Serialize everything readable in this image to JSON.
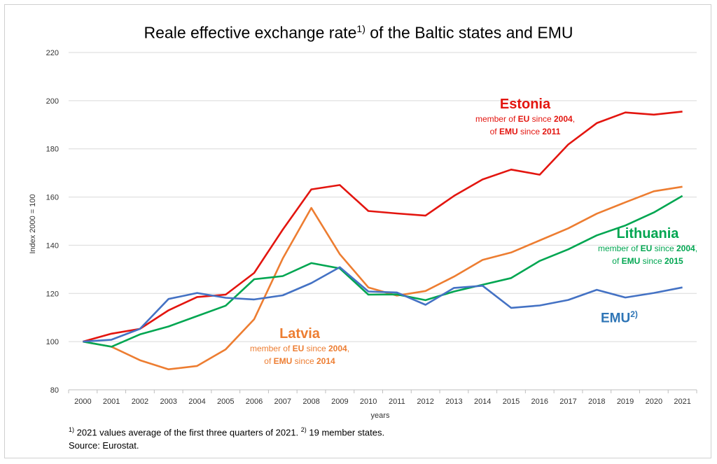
{
  "title": {
    "main": "Reale effective exchange rate",
    "sup": "1)",
    "rest": " of the Baltic states and EMU"
  },
  "chart_data": {
    "type": "line",
    "x": [
      "2000",
      "2001",
      "2002",
      "2003",
      "2004",
      "2005",
      "2006",
      "2007",
      "2008",
      "2009",
      "2010",
      "2011",
      "2012",
      "2013",
      "2014",
      "2015",
      "2016",
      "2017",
      "2018",
      "2019",
      "2020",
      "2021"
    ],
    "xlabel": "years",
    "ylabel": "Index 2000 = 100",
    "ylim": [
      80,
      220
    ],
    "yticks": [
      80,
      100,
      120,
      140,
      160,
      180,
      200,
      220
    ],
    "grid": true,
    "series": [
      {
        "name": "Estonia",
        "color": "#e3150f",
        "values": [
          100,
          103.3,
          105.3,
          113,
          118.5,
          119.5,
          128.5,
          146.5,
          163.2,
          165,
          154.2,
          153.2,
          152.3,
          160.5,
          167.3,
          171.4,
          169.3,
          181.8,
          190.7,
          195.1,
          194.2,
          195.5
        ]
      },
      {
        "name": "Latvia",
        "color": "#ed7d31",
        "values": [
          100,
          97.9,
          92.3,
          88.5,
          89.9,
          96.8,
          109.3,
          134.5,
          155.5,
          136.3,
          122.5,
          119.1,
          121,
          127,
          133.9,
          137,
          142,
          147,
          153.1,
          157.8,
          162.4,
          164.3
        ]
      },
      {
        "name": "Lithuania",
        "color": "#00a651",
        "values": [
          100,
          97.9,
          103,
          106.3,
          110.6,
          114.9,
          125.9,
          127.2,
          132.6,
          130.4,
          119.5,
          119.6,
          117.2,
          120.8,
          123.6,
          126.4,
          133.5,
          138.3,
          144.1,
          148.2,
          153.6,
          160.5
        ]
      },
      {
        "name": "EMU",
        "color": "#4472c4",
        "values": [
          100,
          100.8,
          105.3,
          117.7,
          120.2,
          118.2,
          117.5,
          119.2,
          124.3,
          130.9,
          120.8,
          120.4,
          115.3,
          122.3,
          123.2,
          114,
          115,
          117.3,
          121.5,
          118.3,
          120.2,
          122.5
        ]
      }
    ]
  },
  "labels": {
    "estonia": {
      "name": "Estonia",
      "l1a": "member of ",
      "eu": "EU",
      "l1b": " since ",
      "y_eu": "2004",
      "l1c": ",",
      "l2a": "of ",
      "emu": "EMU",
      "l2b": " since ",
      "y_emu": "2011"
    },
    "latvia": {
      "name": "Latvia",
      "l1a": "member of ",
      "eu": "EU",
      "l1b": " since ",
      "y_eu": "2004",
      "l1c": ",",
      "l2a": "of ",
      "emu": "EMU",
      "l2b": " since ",
      "y_emu": "2014"
    },
    "lithuania": {
      "name": "Lithuania",
      "l1a": "member of ",
      "eu": "EU",
      "l1b": " since ",
      "y_eu": "2004",
      "l1c": ",",
      "l2a": "of ",
      "emu": "EMU",
      "l2b": " since ",
      "y_emu": "2015"
    },
    "emu": {
      "name": "EMU",
      "sup": "2)"
    }
  },
  "footnote": {
    "sup1": "1)",
    "text1": " 2021 values average of the first three quarters of 2021. ",
    "sup2": "2)",
    "text2": " 19 member states.",
    "source": "Source: Eurostat."
  }
}
